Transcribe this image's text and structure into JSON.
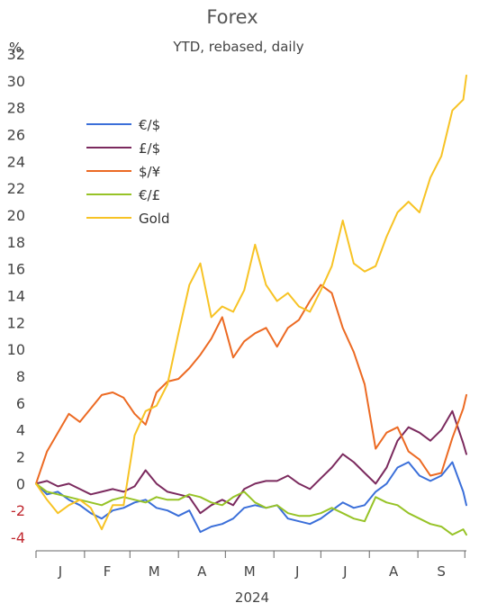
{
  "chart_data": {
    "type": "line",
    "title": "Forex",
    "subtitle": "YTD, rebased, daily",
    "ylabel": "%",
    "xlabel": "2024",
    "ylim": [
      -5,
      32
    ],
    "yticks": [
      -4,
      -2,
      0,
      2,
      4,
      6,
      8,
      10,
      12,
      14,
      16,
      18,
      20,
      22,
      24,
      26,
      28,
      30,
      32
    ],
    "xlim": [
      "2024-01-01",
      "2024-10-02"
    ],
    "x_month_labels": [
      "J",
      "F",
      "M",
      "A",
      "M",
      "J",
      "J",
      "A",
      "S"
    ],
    "legend_position": "upper-left",
    "grid": false,
    "series": [
      {
        "name": "€/$",
        "color": "#3b6fd9",
        "points": [
          [
            "2024-01-01",
            0
          ],
          [
            "2024-01-08",
            -0.8
          ],
          [
            "2024-01-15",
            -0.6
          ],
          [
            "2024-01-22",
            -1.2
          ],
          [
            "2024-01-29",
            -1.6
          ],
          [
            "2024-02-05",
            -2.2
          ],
          [
            "2024-02-12",
            -2.6
          ],
          [
            "2024-02-19",
            -2.0
          ],
          [
            "2024-02-26",
            -1.8
          ],
          [
            "2024-03-04",
            -1.4
          ],
          [
            "2024-03-11",
            -1.2
          ],
          [
            "2024-03-18",
            -1.8
          ],
          [
            "2024-03-25",
            -2.0
          ],
          [
            "2024-04-01",
            -2.4
          ],
          [
            "2024-04-08",
            -2.0
          ],
          [
            "2024-04-15",
            -3.6
          ],
          [
            "2024-04-22",
            -3.2
          ],
          [
            "2024-04-29",
            -3.0
          ],
          [
            "2024-05-06",
            -2.6
          ],
          [
            "2024-05-13",
            -1.8
          ],
          [
            "2024-05-20",
            -1.6
          ],
          [
            "2024-05-27",
            -1.8
          ],
          [
            "2024-06-03",
            -1.6
          ],
          [
            "2024-06-10",
            -2.6
          ],
          [
            "2024-06-17",
            -2.8
          ],
          [
            "2024-06-24",
            -3.0
          ],
          [
            "2024-07-01",
            -2.6
          ],
          [
            "2024-07-08",
            -2.0
          ],
          [
            "2024-07-15",
            -1.4
          ],
          [
            "2024-07-22",
            -1.8
          ],
          [
            "2024-07-29",
            -1.6
          ],
          [
            "2024-08-05",
            -0.6
          ],
          [
            "2024-08-12",
            0.0
          ],
          [
            "2024-08-19",
            1.2
          ],
          [
            "2024-08-26",
            1.6
          ],
          [
            "2024-09-02",
            0.6
          ],
          [
            "2024-09-09",
            0.2
          ],
          [
            "2024-09-16",
            0.6
          ],
          [
            "2024-09-23",
            1.6
          ],
          [
            "2024-09-30",
            -0.6
          ],
          [
            "2024-10-02",
            -1.6
          ]
        ]
      },
      {
        "name": "£/$",
        "color": "#7b2a5e",
        "points": [
          [
            "2024-01-01",
            0
          ],
          [
            "2024-01-08",
            0.2
          ],
          [
            "2024-01-15",
            -0.2
          ],
          [
            "2024-01-22",
            0.0
          ],
          [
            "2024-01-29",
            -0.4
          ],
          [
            "2024-02-05",
            -0.8
          ],
          [
            "2024-02-12",
            -0.6
          ],
          [
            "2024-02-19",
            -0.4
          ],
          [
            "2024-02-26",
            -0.6
          ],
          [
            "2024-03-04",
            -0.2
          ],
          [
            "2024-03-11",
            1.0
          ],
          [
            "2024-03-18",
            0.0
          ],
          [
            "2024-03-25",
            -0.6
          ],
          [
            "2024-04-01",
            -0.8
          ],
          [
            "2024-04-08",
            -1.0
          ],
          [
            "2024-04-15",
            -2.2
          ],
          [
            "2024-04-22",
            -1.6
          ],
          [
            "2024-04-29",
            -1.2
          ],
          [
            "2024-05-06",
            -1.6
          ],
          [
            "2024-05-13",
            -0.4
          ],
          [
            "2024-05-20",
            0.0
          ],
          [
            "2024-05-27",
            0.2
          ],
          [
            "2024-06-03",
            0.2
          ],
          [
            "2024-06-10",
            0.6
          ],
          [
            "2024-06-17",
            0.0
          ],
          [
            "2024-06-24",
            -0.4
          ],
          [
            "2024-07-01",
            0.4
          ],
          [
            "2024-07-08",
            1.2
          ],
          [
            "2024-07-15",
            2.2
          ],
          [
            "2024-07-22",
            1.6
          ],
          [
            "2024-07-29",
            0.8
          ],
          [
            "2024-08-05",
            0.0
          ],
          [
            "2024-08-12",
            1.2
          ],
          [
            "2024-08-19",
            3.2
          ],
          [
            "2024-08-26",
            4.2
          ],
          [
            "2024-09-02",
            3.8
          ],
          [
            "2024-09-09",
            3.2
          ],
          [
            "2024-09-16",
            4.0
          ],
          [
            "2024-09-23",
            5.4
          ],
          [
            "2024-09-30",
            3.0
          ],
          [
            "2024-10-02",
            2.2
          ]
        ]
      },
      {
        "name": "$/¥",
        "color": "#ec6a23",
        "points": [
          [
            "2024-01-01",
            0
          ],
          [
            "2024-01-08",
            2.4
          ],
          [
            "2024-01-15",
            3.8
          ],
          [
            "2024-01-22",
            5.2
          ],
          [
            "2024-01-29",
            4.6
          ],
          [
            "2024-02-05",
            5.6
          ],
          [
            "2024-02-12",
            6.6
          ],
          [
            "2024-02-19",
            6.8
          ],
          [
            "2024-02-26",
            6.4
          ],
          [
            "2024-03-04",
            5.2
          ],
          [
            "2024-03-11",
            4.4
          ],
          [
            "2024-03-18",
            6.8
          ],
          [
            "2024-03-25",
            7.6
          ],
          [
            "2024-04-01",
            7.8
          ],
          [
            "2024-04-08",
            8.6
          ],
          [
            "2024-04-15",
            9.6
          ],
          [
            "2024-04-22",
            10.8
          ],
          [
            "2024-04-29",
            12.4
          ],
          [
            "2024-05-06",
            9.4
          ],
          [
            "2024-05-13",
            10.6
          ],
          [
            "2024-05-20",
            11.2
          ],
          [
            "2024-05-27",
            11.6
          ],
          [
            "2024-06-03",
            10.2
          ],
          [
            "2024-06-10",
            11.6
          ],
          [
            "2024-06-17",
            12.2
          ],
          [
            "2024-06-24",
            13.6
          ],
          [
            "2024-07-01",
            14.8
          ],
          [
            "2024-07-08",
            14.2
          ],
          [
            "2024-07-15",
            11.6
          ],
          [
            "2024-07-22",
            9.8
          ],
          [
            "2024-07-29",
            7.4
          ],
          [
            "2024-08-05",
            2.6
          ],
          [
            "2024-08-12",
            3.8
          ],
          [
            "2024-08-19",
            4.2
          ],
          [
            "2024-08-26",
            2.4
          ],
          [
            "2024-09-02",
            1.8
          ],
          [
            "2024-09-09",
            0.6
          ],
          [
            "2024-09-16",
            0.8
          ],
          [
            "2024-09-23",
            3.4
          ],
          [
            "2024-09-30",
            5.6
          ],
          [
            "2024-10-02",
            6.6
          ]
        ]
      },
      {
        "name": "€/£",
        "color": "#97c327",
        "points": [
          [
            "2024-01-01",
            0
          ],
          [
            "2024-01-08",
            -0.6
          ],
          [
            "2024-01-15",
            -0.8
          ],
          [
            "2024-01-22",
            -1.0
          ],
          [
            "2024-01-29",
            -1.2
          ],
          [
            "2024-02-05",
            -1.4
          ],
          [
            "2024-02-12",
            -1.6
          ],
          [
            "2024-02-19",
            -1.2
          ],
          [
            "2024-02-26",
            -1.0
          ],
          [
            "2024-03-04",
            -1.2
          ],
          [
            "2024-03-11",
            -1.4
          ],
          [
            "2024-03-18",
            -1.0
          ],
          [
            "2024-03-25",
            -1.2
          ],
          [
            "2024-04-01",
            -1.2
          ],
          [
            "2024-04-08",
            -0.8
          ],
          [
            "2024-04-15",
            -1.0
          ],
          [
            "2024-04-22",
            -1.4
          ],
          [
            "2024-04-29",
            -1.6
          ],
          [
            "2024-05-06",
            -1.0
          ],
          [
            "2024-05-13",
            -0.6
          ],
          [
            "2024-05-20",
            -1.4
          ],
          [
            "2024-05-27",
            -1.8
          ],
          [
            "2024-06-03",
            -1.6
          ],
          [
            "2024-06-10",
            -2.2
          ],
          [
            "2024-06-17",
            -2.4
          ],
          [
            "2024-06-24",
            -2.4
          ],
          [
            "2024-07-01",
            -2.2
          ],
          [
            "2024-07-08",
            -1.8
          ],
          [
            "2024-07-15",
            -2.2
          ],
          [
            "2024-07-22",
            -2.6
          ],
          [
            "2024-07-29",
            -2.8
          ],
          [
            "2024-08-05",
            -1.0
          ],
          [
            "2024-08-12",
            -1.4
          ],
          [
            "2024-08-19",
            -1.6
          ],
          [
            "2024-08-26",
            -2.2
          ],
          [
            "2024-09-02",
            -2.6
          ],
          [
            "2024-09-09",
            -3.0
          ],
          [
            "2024-09-16",
            -3.2
          ],
          [
            "2024-09-23",
            -3.8
          ],
          [
            "2024-09-30",
            -3.4
          ],
          [
            "2024-10-02",
            -3.8
          ]
        ]
      },
      {
        "name": "Gold",
        "color": "#f7c325",
        "points": [
          [
            "2024-01-01",
            0
          ],
          [
            "2024-01-08",
            -1.2
          ],
          [
            "2024-01-15",
            -2.2
          ],
          [
            "2024-01-22",
            -1.6
          ],
          [
            "2024-01-29",
            -1.2
          ],
          [
            "2024-02-05",
            -1.8
          ],
          [
            "2024-02-12",
            -3.4
          ],
          [
            "2024-02-19",
            -1.6
          ],
          [
            "2024-02-26",
            -1.6
          ],
          [
            "2024-03-04",
            3.6
          ],
          [
            "2024-03-11",
            5.4
          ],
          [
            "2024-03-18",
            5.8
          ],
          [
            "2024-03-25",
            7.4
          ],
          [
            "2024-04-01",
            11.2
          ],
          [
            "2024-04-08",
            14.8
          ],
          [
            "2024-04-15",
            16.4
          ],
          [
            "2024-04-22",
            12.4
          ],
          [
            "2024-04-29",
            13.2
          ],
          [
            "2024-05-06",
            12.8
          ],
          [
            "2024-05-13",
            14.4
          ],
          [
            "2024-05-20",
            17.8
          ],
          [
            "2024-05-27",
            14.8
          ],
          [
            "2024-06-03",
            13.6
          ],
          [
            "2024-06-10",
            14.2
          ],
          [
            "2024-06-17",
            13.2
          ],
          [
            "2024-06-24",
            12.8
          ],
          [
            "2024-07-01",
            14.4
          ],
          [
            "2024-07-08",
            16.2
          ],
          [
            "2024-07-15",
            19.6
          ],
          [
            "2024-07-22",
            16.4
          ],
          [
            "2024-07-29",
            15.8
          ],
          [
            "2024-08-05",
            16.2
          ],
          [
            "2024-08-12",
            18.4
          ],
          [
            "2024-08-19",
            20.2
          ],
          [
            "2024-08-26",
            21.0
          ],
          [
            "2024-09-02",
            20.2
          ],
          [
            "2024-09-09",
            22.8
          ],
          [
            "2024-09-16",
            24.4
          ],
          [
            "2024-09-23",
            27.8
          ],
          [
            "2024-09-30",
            28.6
          ],
          [
            "2024-10-02",
            30.4
          ]
        ]
      }
    ]
  }
}
